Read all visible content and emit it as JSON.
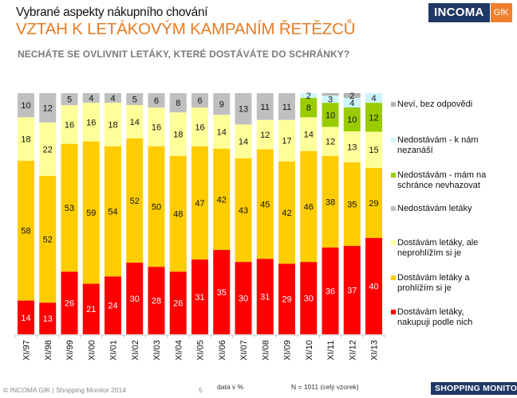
{
  "header": {
    "supertitle": "Vybrané aspekty nákupního chování",
    "title": "VZTAH K LETÁKOVÝM KAMPANÍM ŘETĚZCŮ",
    "question": "NECHÁTE SE OVLIVNIT LETÁKY, KTERÉ DOSTÁVÁTE DO SCHRÁNKY?",
    "logo_main": "INCOMA",
    "logo_partner": "GfK"
  },
  "footer": {
    "copyright": "© INCOMA GfK | Shopping Monitor 2014",
    "page": "5",
    "unit_note": "data v %",
    "sample_note": "N = 1011 (celý vzorek)",
    "brand": "SHOPPING MONITOR",
    "brand_year": "2014"
  },
  "chart_data": {
    "type": "bar",
    "stacked": true,
    "title": "NECHÁTE SE OVLIVNIT LETÁKY, KTERÉ DOSTÁVÁTE DO SCHRÁNKY?",
    "xlabel": "",
    "ylabel": "",
    "unit": "%",
    "ylim": [
      0,
      100
    ],
    "grid": false,
    "legend_position": "right",
    "categories": [
      "XI/97",
      "XI/98",
      "XI/99",
      "XI/00",
      "XI/01",
      "XI/02",
      "XI/03",
      "XI/04",
      "XI/05",
      "XI/06",
      "XI/07",
      "XI/08",
      "XI/09",
      "XI/10",
      "XI/11",
      "XI/12",
      "XI/13"
    ],
    "series": [
      {
        "name": "Dostávám letáky, nakupuji podle nich",
        "color": "#FF0000",
        "label_color": "#FFFFFF",
        "values": [
          14,
          13,
          26,
          21,
          24,
          30,
          28,
          26,
          31,
          35,
          30,
          31,
          29,
          30,
          36,
          37,
          40
        ]
      },
      {
        "name": "Dostávám letáky  a prohlížím si je",
        "color": "#FFCC00",
        "label_color": "#111111",
        "values": [
          58,
          52,
          53,
          59,
          54,
          52,
          50,
          48,
          47,
          42,
          43,
          45,
          42,
          46,
          38,
          35,
          29
        ]
      },
      {
        "name": "Dostávám letáky, ale neprohlížím si je",
        "color": "#FFFF99",
        "label_color": "#111111",
        "values": [
          18,
          22,
          16,
          16,
          18,
          14,
          16,
          18,
          16,
          14,
          14,
          12,
          17,
          14,
          12,
          13,
          15
        ]
      },
      {
        "name": "Nedostávám letáky",
        "color": "#BFBFBF",
        "label_color": "#111111",
        "values": [
          10,
          12,
          5,
          4,
          4,
          5,
          6,
          8,
          6,
          9,
          13,
          11,
          11,
          0,
          0,
          0,
          0
        ]
      },
      {
        "name": "Nedostávám - mám na schránce nevhazovat",
        "color": "#99CC00",
        "label_color": "#111111",
        "values": [
          0,
          0,
          0,
          0,
          0,
          0,
          0,
          0,
          0,
          0,
          0,
          0,
          0,
          8,
          10,
          10,
          12
        ]
      },
      {
        "name": "Nedostávám - k nám nezanáší",
        "color": "#CCF5FF",
        "label_color": "#111111",
        "values": [
          0,
          0,
          0,
          0,
          0,
          0,
          0,
          0,
          0,
          0,
          0,
          0,
          0,
          2,
          3,
          4,
          4
        ]
      },
      {
        "name": "Neví, bez odpovědi",
        "color": "#B3B3B3",
        "label_color": "#111111",
        "values": [
          0,
          0,
          0,
          0,
          0,
          0,
          0,
          0,
          0,
          0,
          0,
          0,
          0,
          0,
          1,
          2,
          0
        ]
      }
    ],
    "legend": [
      {
        "label": "Neví, bez odpovědi",
        "color": "#B3B3B3"
      },
      {
        "label": "Nedostávám - k nám nezanáší",
        "color": "#CCF5FF"
      },
      {
        "label": "Nedostávám - mám na schránce nevhazovat",
        "color": "#99CC00"
      },
      {
        "label": "Nedostávám letáky",
        "color": "#BFBFBF"
      },
      {
        "label": "Dostávám letáky, ale neprohlížím si je",
        "color": "#FFFF99"
      },
      {
        "label": "Dostávám letáky  a prohlížím si je",
        "color": "#FFCC00"
      },
      {
        "label": "Dostávám letáky, nakupuji podle nich",
        "color": "#FF0000"
      }
    ]
  }
}
